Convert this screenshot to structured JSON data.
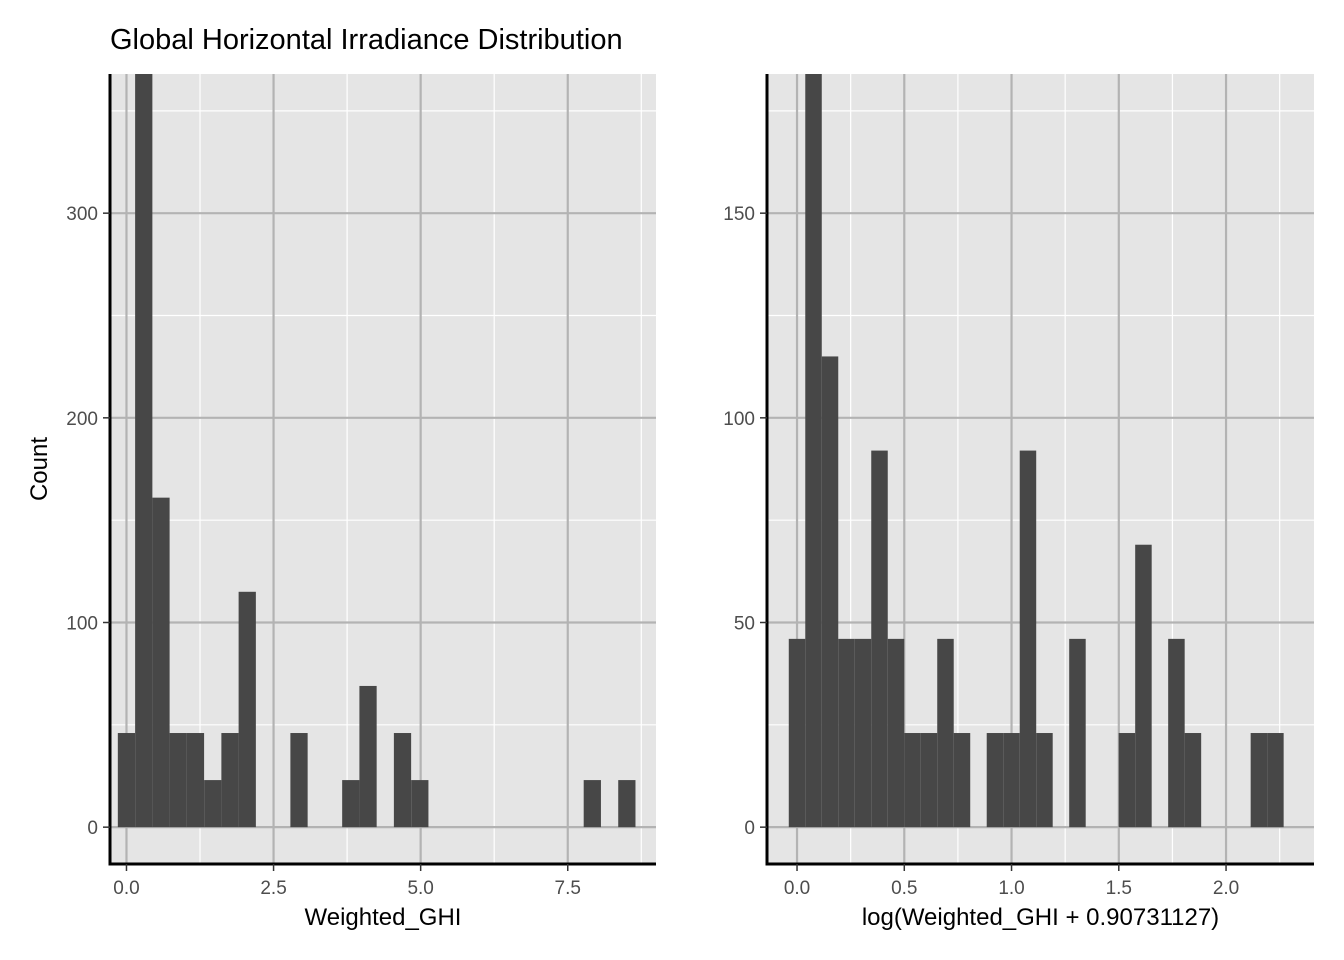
{
  "title": "Global Horizontal Irradiance Distribution",
  "colors": {
    "panel_background": "#e5e5e5",
    "major_grid": "#b3b3b3",
    "minor_grid": "#ffffff",
    "bar_fill": "#474747",
    "axis_line": "#000000"
  },
  "chart_data": [
    {
      "type": "bar",
      "subtype": "histogram",
      "xlabel": "Weighted_GHI",
      "ylabel": "Count",
      "xlim": [
        -0.28,
        9.0
      ],
      "ylim": [
        -18,
        368
      ],
      "x_ticks": [
        0.0,
        2.5,
        5.0,
        7.5
      ],
      "x_tick_labels": [
        "0.0",
        "2.5",
        "5.0",
        "7.5"
      ],
      "y_ticks": [
        0,
        100,
        200,
        300
      ],
      "y_tick_labels": [
        "0",
        "100",
        "200",
        "300"
      ],
      "bin_width": 0.2932,
      "bin_starts": [
        -0.147,
        0.147,
        0.44,
        0.733,
        1.026,
        1.32,
        1.613,
        1.906,
        2.199,
        2.493,
        2.786,
        3.079,
        3.372,
        3.666,
        3.959,
        4.252,
        4.545,
        4.839,
        5.132,
        5.425,
        5.718,
        6.012,
        6.305,
        6.598,
        6.891,
        7.185,
        7.478,
        7.771,
        8.064,
        8.358
      ],
      "values": [
        46,
        368,
        161,
        46,
        46,
        23,
        46,
        115,
        0,
        0,
        46,
        0,
        0,
        23,
        69,
        0,
        46,
        23,
        0,
        0,
        0,
        0,
        0,
        0,
        0,
        0,
        0,
        23,
        0,
        23
      ],
      "grid": true
    },
    {
      "type": "bar",
      "subtype": "histogram",
      "xlabel": "log(Weighted_GHI + 0.90731127)",
      "ylabel": "",
      "xlim": [
        -0.14,
        2.41
      ],
      "ylim": [
        -9,
        184
      ],
      "x_ticks": [
        0.0,
        0.5,
        1.0,
        1.5,
        2.0
      ],
      "x_tick_labels": [
        "0.0",
        "0.5",
        "1.0",
        "1.5",
        "2.0"
      ],
      "y_ticks": [
        0,
        50,
        100,
        150
      ],
      "y_tick_labels": [
        "0",
        "50",
        "100",
        "150"
      ],
      "bin_width": 0.0769,
      "bin_starts": [
        -0.0385,
        0.0384,
        0.1153,
        0.1922,
        0.2691,
        0.346,
        0.4229,
        0.4998,
        0.5767,
        0.6536,
        0.7305,
        0.8074,
        0.8843,
        0.9612,
        1.0381,
        1.115,
        1.1919,
        1.2688,
        1.3457,
        1.4226,
        1.4995,
        1.5764,
        1.6533,
        1.7302,
        1.8071,
        1.884,
        1.9609,
        2.0378,
        2.1147,
        2.1916
      ],
      "values": [
        46,
        184,
        115,
        46,
        46,
        92,
        46,
        23,
        23,
        46,
        23,
        0,
        23,
        23,
        92,
        23,
        0,
        46,
        0,
        0,
        23,
        69,
        0,
        46,
        23,
        0,
        0,
        0,
        23,
        23
      ],
      "grid": true
    }
  ]
}
